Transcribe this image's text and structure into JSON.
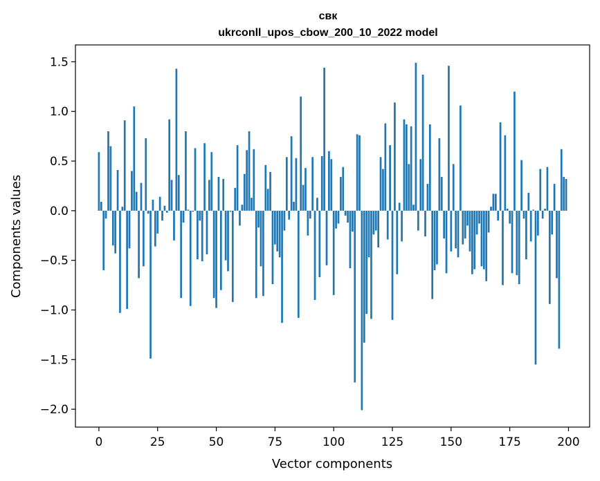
{
  "chart_data": {
    "type": "bar",
    "title": "свк",
    "subtitle": "ukrconll_upos_cbow_200_10_2022 model",
    "xlabel": "Vector components",
    "ylabel": "Components values",
    "xlim": [
      -10,
      209
    ],
    "ylim": [
      -2.18,
      1.67
    ],
    "xticks": [
      0,
      25,
      50,
      75,
      100,
      125,
      150,
      175,
      200
    ],
    "xtick_labels": [
      "0",
      "25",
      "50",
      "75",
      "100",
      "125",
      "150",
      "175",
      "200"
    ],
    "yticks": [
      -2.0,
      -1.5,
      -1.0,
      -0.5,
      0.0,
      0.5,
      1.0,
      1.5
    ],
    "ytick_labels": [
      "−2.0",
      "−1.5",
      "−1.0",
      "−0.5",
      "0.0",
      "0.5",
      "1.0",
      "1.5"
    ],
    "bar_color": "#1f77b4",
    "grid": false,
    "legend": false,
    "values": [
      0.59,
      0.09,
      -0.6,
      -0.08,
      0.8,
      0.65,
      -0.35,
      -0.43,
      0.41,
      -1.03,
      0.04,
      0.91,
      -0.99,
      -0.38,
      0.4,
      1.05,
      0.19,
      -0.68,
      0.28,
      -0.56,
      0.73,
      -0.03,
      -1.49,
      0.11,
      -0.36,
      -0.23,
      0.14,
      -0.1,
      0.05,
      -0.02,
      0.92,
      0.31,
      -0.3,
      1.43,
      0.36,
      -0.88,
      -0.12,
      0.8,
      0.01,
      -0.96,
      -0.01,
      0.63,
      -0.49,
      -0.1,
      -0.51,
      0.68,
      -0.44,
      0.31,
      0.59,
      -0.88,
      -0.98,
      0.34,
      -0.8,
      0.32,
      -0.5,
      -0.61,
      -0.01,
      -0.92,
      0.23,
      0.66,
      -0.15,
      0.06,
      0.37,
      0.61,
      0.8,
      0.13,
      0.62,
      -0.88,
      -0.17,
      -0.56,
      -0.86,
      0.46,
      0.22,
      0.39,
      -0.74,
      -0.34,
      -0.41,
      -0.47,
      -1.13,
      -0.2,
      0.54,
      -0.09,
      0.75,
      0.09,
      0.53,
      -1.08,
      1.15,
      0.26,
      0.43,
      -0.25,
      -0.08,
      0.54,
      -0.9,
      0.13,
      -0.67,
      0.55,
      1.44,
      -0.55,
      0.6,
      0.52,
      -0.85,
      -0.18,
      -0.13,
      0.34,
      0.44,
      -0.05,
      -0.12,
      -0.58,
      -0.21,
      -1.73,
      0.77,
      0.76,
      -2.01,
      -1.33,
      -1.04,
      -0.47,
      -1.09,
      -0.24,
      -0.2,
      -0.37,
      0.54,
      0.42,
      0.88,
      -0.29,
      0.66,
      -1.1,
      1.09,
      -0.64,
      0.08,
      -0.31,
      0.92,
      0.87,
      0.47,
      0.85,
      0.06,
      1.49,
      -0.2,
      0.52,
      1.37,
      -0.26,
      0.27,
      0.87,
      -0.89,
      -0.6,
      -0.54,
      0.73,
      0.34,
      -0.28,
      -0.63,
      1.46,
      -0.41,
      0.47,
      -0.38,
      -0.47,
      1.06,
      -0.34,
      -0.28,
      -0.15,
      -0.41,
      -0.64,
      -0.59,
      -0.24,
      -0.13,
      -0.56,
      -0.59,
      -0.71,
      -0.22,
      0.04,
      0.17,
      0.17,
      -0.1,
      0.89,
      -0.75,
      0.76,
      0.02,
      -0.13,
      -0.63,
      1.2,
      -0.65,
      -0.74,
      0.51,
      -0.08,
      -0.49,
      0.18,
      -0.31,
      0.01,
      -1.55,
      -0.25,
      0.42,
      -0.08,
      0.02,
      0.44,
      -0.94,
      -0.24,
      0.27,
      -0.68,
      -1.39,
      0.62,
      0.34,
      0.32
    ]
  }
}
